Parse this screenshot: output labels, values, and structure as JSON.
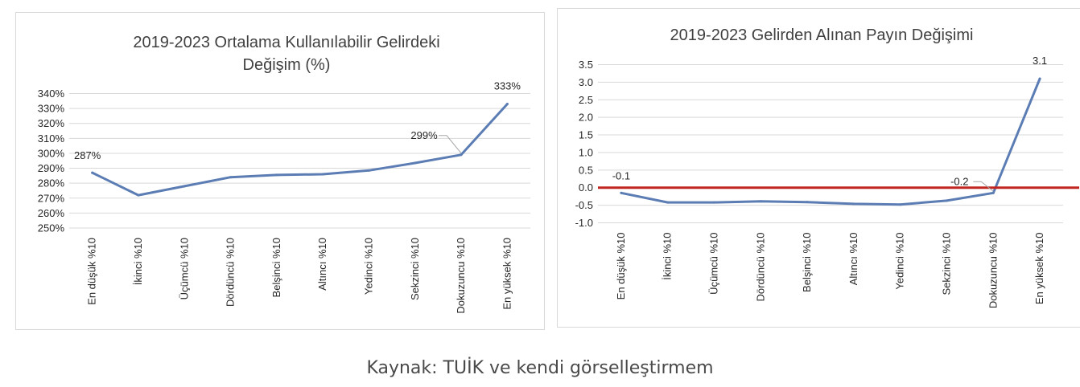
{
  "chart_data": [
    {
      "type": "line",
      "title_lines": [
        "2019-2023 Ortalama Kullanılabilir Gelirdeki",
        "Değişim (%)"
      ],
      "categories": [
        "En düşük %10",
        "İkinci %10",
        "Üçümcü %10",
        "Dördüncü %10",
        "Belşinci %10",
        "Altıncı %10",
        "Yedinci %10",
        "Sekzinci %10",
        "Dokuzuncu %10",
        "En yüksek %10"
      ],
      "series": [
        {
          "values": [
            287,
            272,
            278,
            284,
            285.5,
            286,
            288.5,
            293.5,
            299,
            333
          ],
          "color": "#5b7db4"
        }
      ],
      "data_labels": [
        {
          "index": 0,
          "text": "287%"
        },
        {
          "index": 8,
          "text": "299%"
        },
        {
          "index": 9,
          "text": "333%"
        }
      ],
      "ylim": [
        250,
        340
      ],
      "yticks": [
        250,
        260,
        270,
        280,
        290,
        300,
        310,
        320,
        330,
        340
      ],
      "ytick_labels": [
        "250%",
        "260%",
        "270%",
        "280%",
        "290%",
        "300%",
        "310%",
        "320%",
        "330%",
        "340%"
      ],
      "grid": true,
      "legend": "none"
    },
    {
      "type": "line",
      "title_lines": [
        "2019-2023 Gelirden Alınan Payın Değişimi"
      ],
      "categories": [
        "En düşük %10",
        "İkinci %10",
        "Üçümcü %10",
        "Dördüncü %10",
        "Belşinci %10",
        "Altıncı %10",
        "Yedinci %10",
        "Sekzinci %10",
        "Dokuzuncu %10",
        "En yüksek %10"
      ],
      "series": [
        {
          "values": [
            -0.15,
            -0.42,
            -0.42,
            -0.39,
            -0.41,
            -0.46,
            -0.48,
            -0.37,
            -0.15,
            3.1
          ],
          "color": "#5b7db4"
        }
      ],
      "data_labels": [
        {
          "index": 0,
          "text": "-0.1"
        },
        {
          "index": 8,
          "text": "-0.2"
        },
        {
          "index": 9,
          "text": "3.1"
        }
      ],
      "ylim": [
        -1.0,
        3.5
      ],
      "yticks": [
        -1.0,
        -0.5,
        0.0,
        0.5,
        1.0,
        1.5,
        2.0,
        2.5,
        3.0,
        3.5
      ],
      "ytick_labels": [
        "-1.0",
        "-0.5",
        "0.0",
        "0.5",
        "1.0",
        "1.5",
        "2.0",
        "2.5",
        "3.0",
        "3.5"
      ],
      "zero_line_color": "#c0251f",
      "grid": true,
      "legend": "none"
    }
  ],
  "caption": "Kaynak: TUİK ve kendi görselleştirmem"
}
